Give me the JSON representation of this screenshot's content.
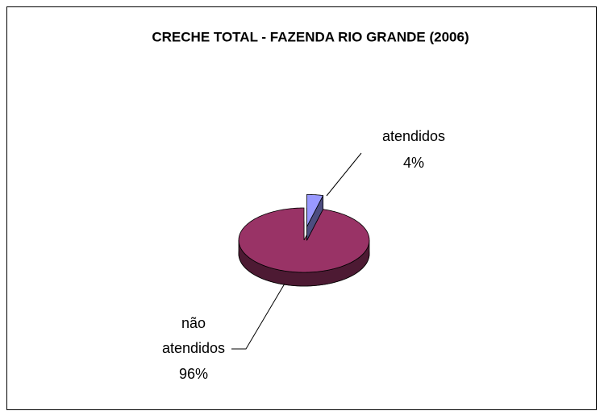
{
  "chart_data": {
    "type": "pie",
    "title": "CRECHE TOTAL - FAZENDA RIO GRANDE (2006)",
    "categories": [
      "atendidos",
      "não atendidos"
    ],
    "values": [
      4,
      96
    ],
    "value_labels": [
      "4%",
      "96%"
    ],
    "colors": [
      "#9999ff",
      "#993366"
    ]
  }
}
